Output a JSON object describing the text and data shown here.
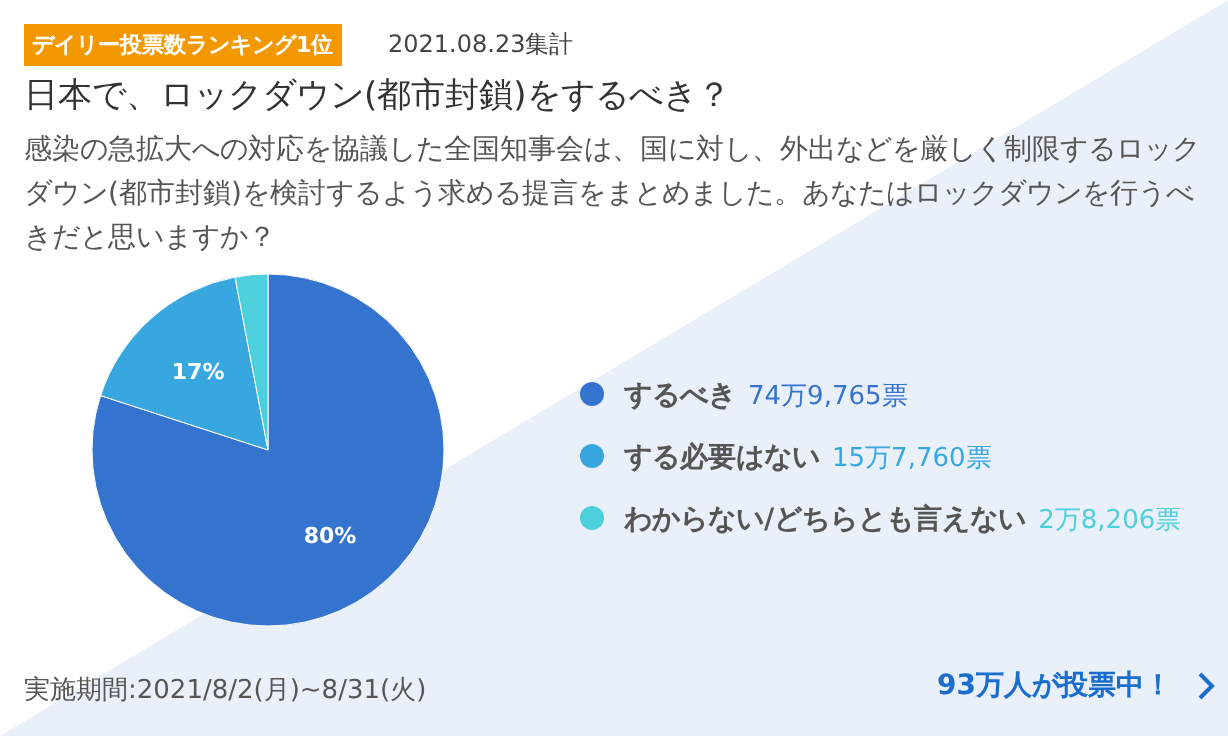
{
  "chart_data": {
    "type": "pie",
    "title": "日本で、ロックダウン(都市封鎖)をするべき？",
    "subtitle": "感染の急拡大への対応を協議した全国知事会は、国に対し、外出などを厳しく制限するロックダウン(都市封鎖)を検討するよう求める提言をまとめました。あなたはロックダウンを行うべきだと思いますか？",
    "categories": [
      "するべき",
      "する必要はない",
      "わからない/どちらとも言えない"
    ],
    "values": [
      80,
      17,
      3
    ],
    "value_labels": [
      "80%",
      "17%",
      null
    ],
    "colors": [
      "#3474cf",
      "#38a7e0",
      "#4ecfdc"
    ],
    "legend": "right",
    "annotations": [
      "デイリー投票数ランキング1位",
      "2021.08.23集計",
      "74万9,765票",
      "15万7,760票",
      "2万8,206票",
      "実施期間:2021/8/2(月)~8/31(火)",
      "93万人が投票中！"
    ]
  }
}
